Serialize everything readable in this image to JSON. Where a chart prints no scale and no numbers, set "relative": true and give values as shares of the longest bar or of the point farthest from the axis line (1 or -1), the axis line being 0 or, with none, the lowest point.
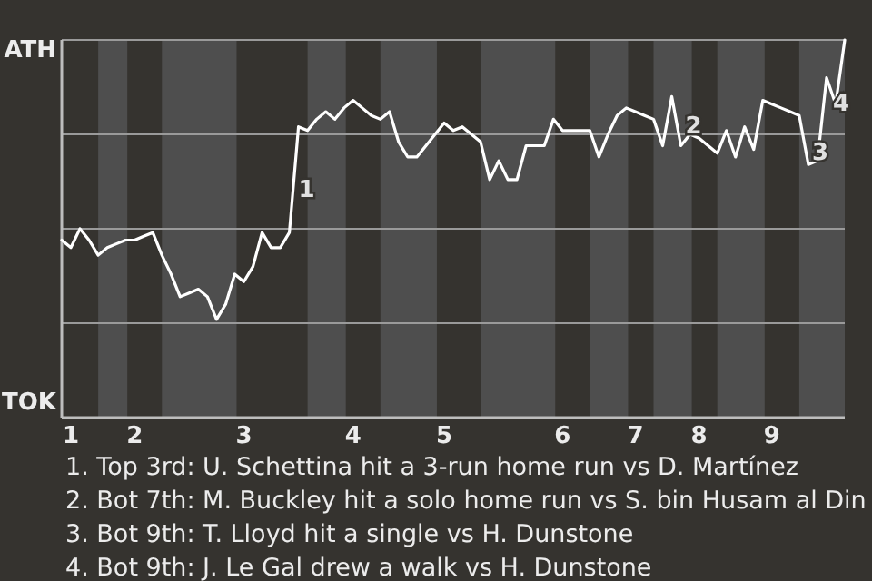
{
  "chart_data": {
    "type": "line",
    "relative": true,
    "categories": [
      null,
      "1",
      null,
      null,
      null,
      null,
      null,
      null,
      "2",
      null,
      null,
      null,
      null,
      null,
      null,
      null,
      null,
      null,
      null,
      null,
      "3",
      null,
      null,
      null,
      null,
      null,
      null,
      null,
      null,
      null,
      null,
      null,
      "4",
      null,
      null,
      null,
      null,
      null,
      null,
      null,
      null,
      null,
      "5",
      null,
      null,
      null,
      null,
      null,
      null,
      null,
      null,
      null,
      null,
      null,
      null,
      "6",
      null,
      null,
      null,
      null,
      null,
      null,
      null,
      "7",
      null,
      null,
      null,
      null,
      null,
      null,
      "8",
      null,
      null,
      null,
      null,
      null,
      null,
      null,
      "9",
      null,
      null,
      null,
      null,
      null,
      null,
      null,
      null
    ],
    "series": [
      {
        "color": "#ffffff",
        "values": [
          0.47,
          0.45,
          0.5,
          0.47,
          0.43,
          0.45,
          0.46,
          0.47,
          0.47,
          0.48,
          0.49,
          0.43,
          0.38,
          0.32,
          0.33,
          0.34,
          0.32,
          0.26,
          0.3,
          0.38,
          0.36,
          0.4,
          0.49,
          0.45,
          0.45,
          0.49,
          0.77,
          0.76,
          0.79,
          0.81,
          0.79,
          0.82,
          0.84,
          0.82,
          0.8,
          0.79,
          0.81,
          0.73,
          0.69,
          0.69,
          0.72,
          0.75,
          0.78,
          0.76,
          0.77,
          0.75,
          0.73,
          0.63,
          0.68,
          0.63,
          0.63,
          0.72,
          0.72,
          0.72,
          0.79,
          0.76,
          0.76,
          0.76,
          0.76,
          0.69,
          0.75,
          0.8,
          0.82,
          0.81,
          0.8,
          0.79,
          0.72,
          0.85,
          0.72,
          0.75,
          0.74,
          0.72,
          0.7,
          0.76,
          0.69,
          0.77,
          0.71,
          0.84,
          0.83,
          0.82,
          0.81,
          0.8,
          0.67,
          0.68,
          0.9,
          0.83,
          1.0
        ]
      }
    ],
    "marker": "none",
    "line_style": "solid",
    "annotations": [
      "ATH",
      "TOK",
      "1",
      "2",
      "3",
      "4",
      "1. Top 3rd: U. Schettina hit a 3-run home run vs D. Martínez",
      "2. Bot 7th: M. Buckley hit a solo home run vs S. bin Husam al Din",
      "3. Bot 9th: T. Lloyd hit a single vs H. Dunstone",
      "4. Bot 9th: J. Le Gal drew a walk vs H. Dunstone"
    ]
  }
}
